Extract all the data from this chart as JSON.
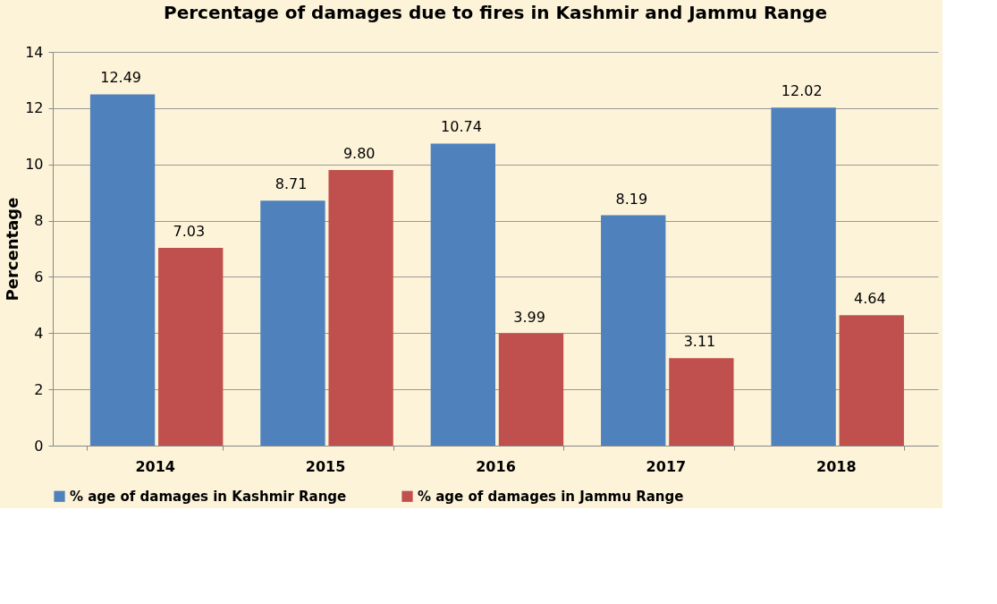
{
  "chart_data": {
    "type": "bar",
    "title": "Percentage of damages due to fires in Kashmir and Jammu Range",
    "ylabel": "Percentage",
    "categories": [
      "2014",
      "2015",
      "2016",
      "2017",
      "2018"
    ],
    "series": [
      {
        "name": "% age of damages in Kashmir Range",
        "color": "#4f81bd",
        "values": [
          12.49,
          8.71,
          10.74,
          8.19,
          12.02
        ],
        "value_labels": [
          "12.49",
          "8.71",
          "10.74",
          "8.19",
          "12.02"
        ]
      },
      {
        "name": "% age of damages in Jammu Range",
        "color": "#c0504d",
        "values": [
          7.03,
          9.8,
          3.99,
          3.11,
          4.64
        ],
        "value_labels": [
          "7.03",
          "9.80",
          "3.99",
          "3.11",
          "4.64"
        ]
      }
    ],
    "ylim": [
      0,
      14
    ],
    "yticks": [
      0,
      2,
      4,
      6,
      8,
      10,
      12,
      14
    ],
    "grid": "y",
    "legend": "bottom"
  }
}
